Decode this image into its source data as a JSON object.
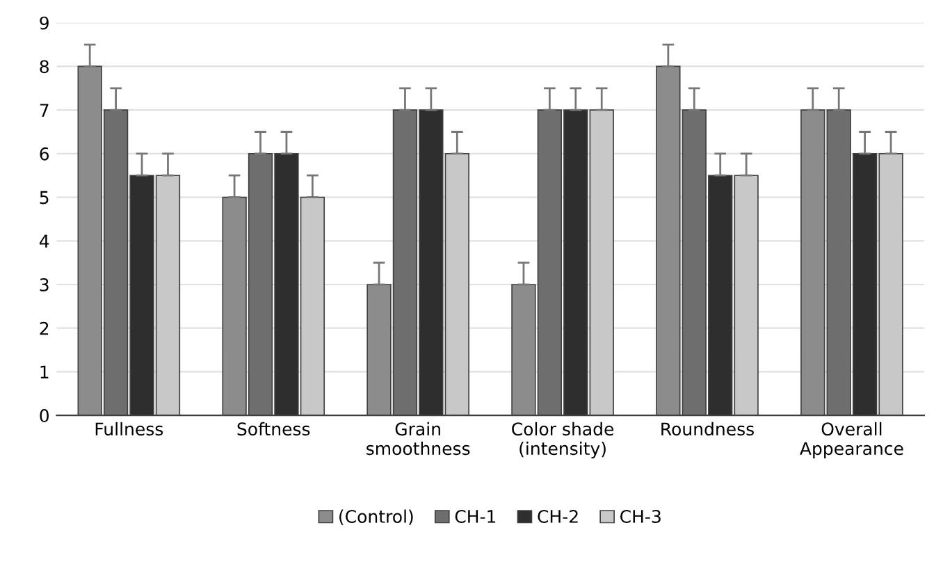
{
  "chart_data": {
    "type": "bar",
    "categories": [
      "Fullness",
      "Softness",
      "Grain\nsmoothness",
      "Color shade\n(intensity)",
      "Roundness",
      "Overall\nAppearance"
    ],
    "series": [
      {
        "name": "(Control)",
        "color": "#8c8c8c",
        "values": [
          8,
          5,
          3,
          3,
          8,
          7
        ],
        "errors": [
          [
            8,
            8.5
          ],
          [
            5,
            5.5
          ],
          [
            3,
            3.5
          ],
          [
            3,
            3.5
          ],
          [
            8,
            8.5
          ],
          [
            7,
            7.5
          ]
        ]
      },
      {
        "name": "CH-1",
        "color": "#6e6e6e",
        "values": [
          7,
          6,
          7,
          7,
          7,
          7
        ],
        "errors": [
          [
            7,
            7.5
          ],
          [
            6,
            6.5
          ],
          [
            7,
            7.5
          ],
          [
            7,
            7.5
          ],
          [
            7,
            7.5
          ],
          [
            7,
            7.5
          ]
        ]
      },
      {
        "name": "CH-2",
        "color": "#2e2e2e",
        "values": [
          5.5,
          6,
          7,
          7,
          5.5,
          6
        ],
        "errors": [
          [
            5.5,
            6
          ],
          [
            6,
            6.5
          ],
          [
            7,
            7.5
          ],
          [
            7,
            7.5
          ],
          [
            5.5,
            6
          ],
          [
            6,
            6.5
          ]
        ]
      },
      {
        "name": "CH-3",
        "color": "#c8c8c8",
        "values": [
          5.5,
          5,
          6,
          7,
          5.5,
          6
        ],
        "errors": [
          [
            5.5,
            6
          ],
          [
            5,
            5.5
          ],
          [
            6,
            6.5
          ],
          [
            7,
            7.5
          ],
          [
            5.5,
            6
          ],
          [
            6,
            6.5
          ]
        ]
      }
    ],
    "ylim": [
      0,
      9
    ],
    "yticks": [
      0,
      1,
      2,
      3,
      4,
      5,
      6,
      7,
      8,
      9
    ],
    "grid": "y",
    "legend": "bottom"
  }
}
